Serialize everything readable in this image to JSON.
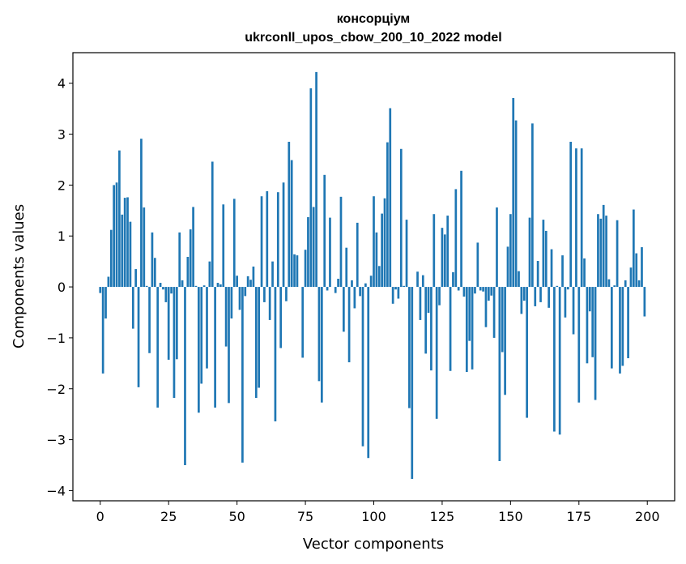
{
  "chart_data": {
    "type": "bar",
    "title": [
      "консорціум",
      "ukrconll_upos_cbow_200_10_2022 model"
    ],
    "xlabel": "Vector components",
    "ylabel": "Components values",
    "xlim": [
      -10,
      210
    ],
    "ylim": [
      -4.2,
      4.6
    ],
    "xticks": [
      0,
      25,
      50,
      75,
      100,
      125,
      150,
      175,
      200
    ],
    "yticks": [
      -4,
      -3,
      -2,
      -1,
      0,
      1,
      2,
      3,
      4
    ],
    "bar_color": "#1f77b4",
    "grid": false,
    "values": [
      -0.12,
      -1.7,
      -0.62,
      0.2,
      1.12,
      2.0,
      2.05,
      2.68,
      1.42,
      1.75,
      1.76,
      1.28,
      -0.82,
      0.35,
      -1.97,
      2.91,
      1.56,
      0.02,
      -1.3,
      1.07,
      0.57,
      -2.37,
      0.08,
      -0.05,
      -0.3,
      -1.43,
      -0.13,
      -2.18,
      -1.42,
      1.07,
      0.13,
      -3.5,
      0.59,
      1.13,
      1.57,
      0.02,
      -2.47,
      -1.9,
      0.03,
      -1.6,
      0.5,
      2.46,
      -2.37,
      0.08,
      0.05,
      1.62,
      -1.17,
      -2.28,
      -0.62,
      1.73,
      0.22,
      -0.45,
      -3.45,
      -0.18,
      0.21,
      0.14,
      0.4,
      -2.18,
      -1.98,
      1.78,
      -0.3,
      1.88,
      -0.65,
      0.5,
      -2.64,
      1.86,
      -1.2,
      2.05,
      -0.28,
      2.85,
      2.49,
      0.64,
      0.62,
      0.0,
      -1.39,
      0.73,
      1.37,
      3.9,
      1.57,
      4.22,
      -1.85,
      -2.27,
      2.2,
      -0.07,
      1.36,
      0.0,
      -0.12,
      0.16,
      1.77,
      -0.88,
      0.77,
      -1.48,
      0.13,
      -0.42,
      1.26,
      -0.18,
      -3.13,
      0.07,
      -3.36,
      0.22,
      1.78,
      1.07,
      0.41,
      1.44,
      1.74,
      2.84,
      3.51,
      -0.33,
      -0.05,
      -0.23,
      2.71,
      0.02,
      1.32,
      -2.38,
      -3.77,
      0.0,
      0.3,
      -0.65,
      0.23,
      -1.31,
      -0.51,
      -1.64,
      1.43,
      -2.59,
      -0.36,
      1.16,
      1.03,
      1.4,
      -1.65,
      0.29,
      1.92,
      -0.07,
      2.28,
      -0.19,
      -1.67,
      -1.06,
      -1.62,
      -0.13,
      0.87,
      -0.07,
      -0.09,
      -0.79,
      -0.27,
      -0.17,
      -1.0,
      1.56,
      -3.42,
      -1.28,
      -2.12,
      0.79,
      1.43,
      3.71,
      3.27,
      0.31,
      -0.53,
      -0.27,
      -2.57,
      1.36,
      3.21,
      -0.38,
      0.51,
      -0.3,
      1.32,
      1.1,
      -0.41,
      0.74,
      -2.84,
      0.02,
      -2.9,
      0.62,
      -0.6,
      -0.05,
      2.85,
      -0.93,
      2.72,
      -2.27,
      2.72,
      0.56,
      -1.5,
      -0.48,
      -1.38,
      -2.22,
      1.43,
      1.34,
      1.61,
      1.4,
      0.15,
      -1.6,
      0.03,
      1.31,
      -1.7,
      -1.55,
      0.13,
      -1.4,
      0.38,
      1.52,
      0.66,
      0.13,
      0.78,
      -0.58
    ]
  }
}
